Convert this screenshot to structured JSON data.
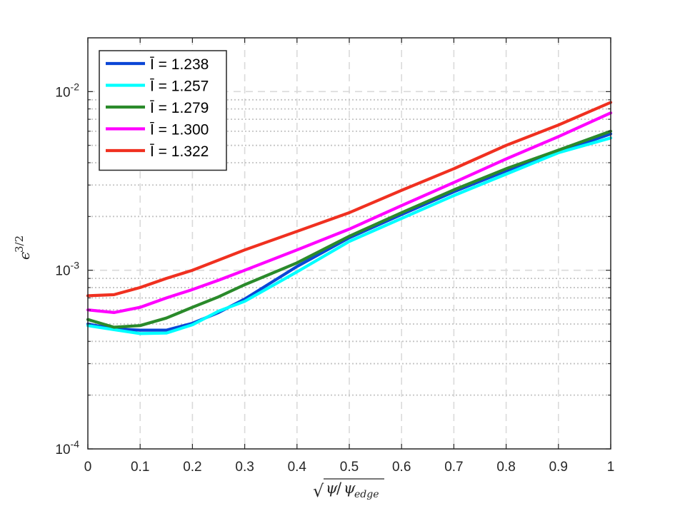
{
  "chart_data": {
    "type": "line",
    "xlabel": "√(ψ/ψ_edge)",
    "xlabel_parts": {
      "sqrt": "√",
      "psi": "ψ",
      "slash": "/",
      "psi_edge": "ψ",
      "edge": "edge"
    },
    "ylabel": "ϵ^{3/2}",
    "ylabel_parts": {
      "epsilon": "ϵ",
      "exponent": "3/2"
    },
    "xlim": [
      0,
      1
    ],
    "ylim": [
      0.0001,
      0.02
    ],
    "yscale": "log",
    "grid": true,
    "legend_position": "top-left",
    "x_ticks": [
      {
        "value": 0,
        "label": "0"
      },
      {
        "value": 0.1,
        "label": "0.1"
      },
      {
        "value": 0.2,
        "label": "0.2"
      },
      {
        "value": 0.3,
        "label": "0.3"
      },
      {
        "value": 0.4,
        "label": "0.4"
      },
      {
        "value": 0.5,
        "label": "0.5"
      },
      {
        "value": 0.6,
        "label": "0.6"
      },
      {
        "value": 0.7,
        "label": "0.7"
      },
      {
        "value": 0.8,
        "label": "0.8"
      },
      {
        "value": 0.9,
        "label": "0.9"
      },
      {
        "value": 1,
        "label": "1"
      }
    ],
    "y_ticks": [
      {
        "value": 0.0001,
        "base": "10",
        "exp": "-4"
      },
      {
        "value": 0.001,
        "base": "10",
        "exp": "-3"
      },
      {
        "value": 0.01,
        "base": "10",
        "exp": "-2"
      }
    ],
    "series": [
      {
        "name": "Ī = 1.238",
        "color": "#0b46d6",
        "x": [
          0,
          0.05,
          0.1,
          0.15,
          0.2,
          0.25,
          0.3,
          0.4,
          0.5,
          0.6,
          0.7,
          0.8,
          0.9,
          1.0
        ],
        "y": [
          0.0005,
          0.00047,
          0.000462,
          0.000462,
          0.000505,
          0.00058,
          0.00069,
          0.00105,
          0.00152,
          0.00205,
          0.00275,
          0.0036,
          0.0046,
          0.0058
        ]
      },
      {
        "name": "Ī = 1.257",
        "color": "#00ffff",
        "x": [
          0,
          0.05,
          0.1,
          0.15,
          0.2,
          0.25,
          0.3,
          0.4,
          0.5,
          0.6,
          0.7,
          0.8,
          0.9,
          1.0
        ],
        "y": [
          0.00049,
          0.000465,
          0.000442,
          0.000445,
          0.000495,
          0.00059,
          0.00067,
          0.00098,
          0.00145,
          0.00195,
          0.00262,
          0.00345,
          0.00455,
          0.0055
        ]
      },
      {
        "name": "Ī = 1.279",
        "color": "#2a8a2a",
        "x": [
          0,
          0.05,
          0.1,
          0.15,
          0.2,
          0.25,
          0.3,
          0.4,
          0.5,
          0.6,
          0.7,
          0.8,
          0.9,
          1.0
        ],
        "y": [
          0.00053,
          0.00048,
          0.00049,
          0.00054,
          0.00062,
          0.00071,
          0.00083,
          0.0011,
          0.00155,
          0.0021,
          0.00282,
          0.0037,
          0.0047,
          0.006
        ]
      },
      {
        "name": "Ī = 1.300",
        "color": "#ff00ff",
        "x": [
          0,
          0.05,
          0.1,
          0.15,
          0.2,
          0.25,
          0.3,
          0.4,
          0.5,
          0.6,
          0.7,
          0.8,
          0.9,
          1.0
        ],
        "y": [
          0.0006,
          0.00058,
          0.00062,
          0.0007,
          0.00078,
          0.00088,
          0.001,
          0.0013,
          0.0017,
          0.0023,
          0.0031,
          0.0042,
          0.0056,
          0.0076
        ]
      },
      {
        "name": "Ī = 1.322",
        "color": "#f03020",
        "x": [
          0,
          0.05,
          0.1,
          0.15,
          0.2,
          0.25,
          0.3,
          0.4,
          0.5,
          0.6,
          0.7,
          0.8,
          0.9,
          1.0
        ],
        "y": [
          0.00072,
          0.00073,
          0.0008,
          0.0009,
          0.001,
          0.00114,
          0.0013,
          0.00165,
          0.0021,
          0.0028,
          0.0037,
          0.005,
          0.0065,
          0.0087
        ]
      }
    ]
  }
}
